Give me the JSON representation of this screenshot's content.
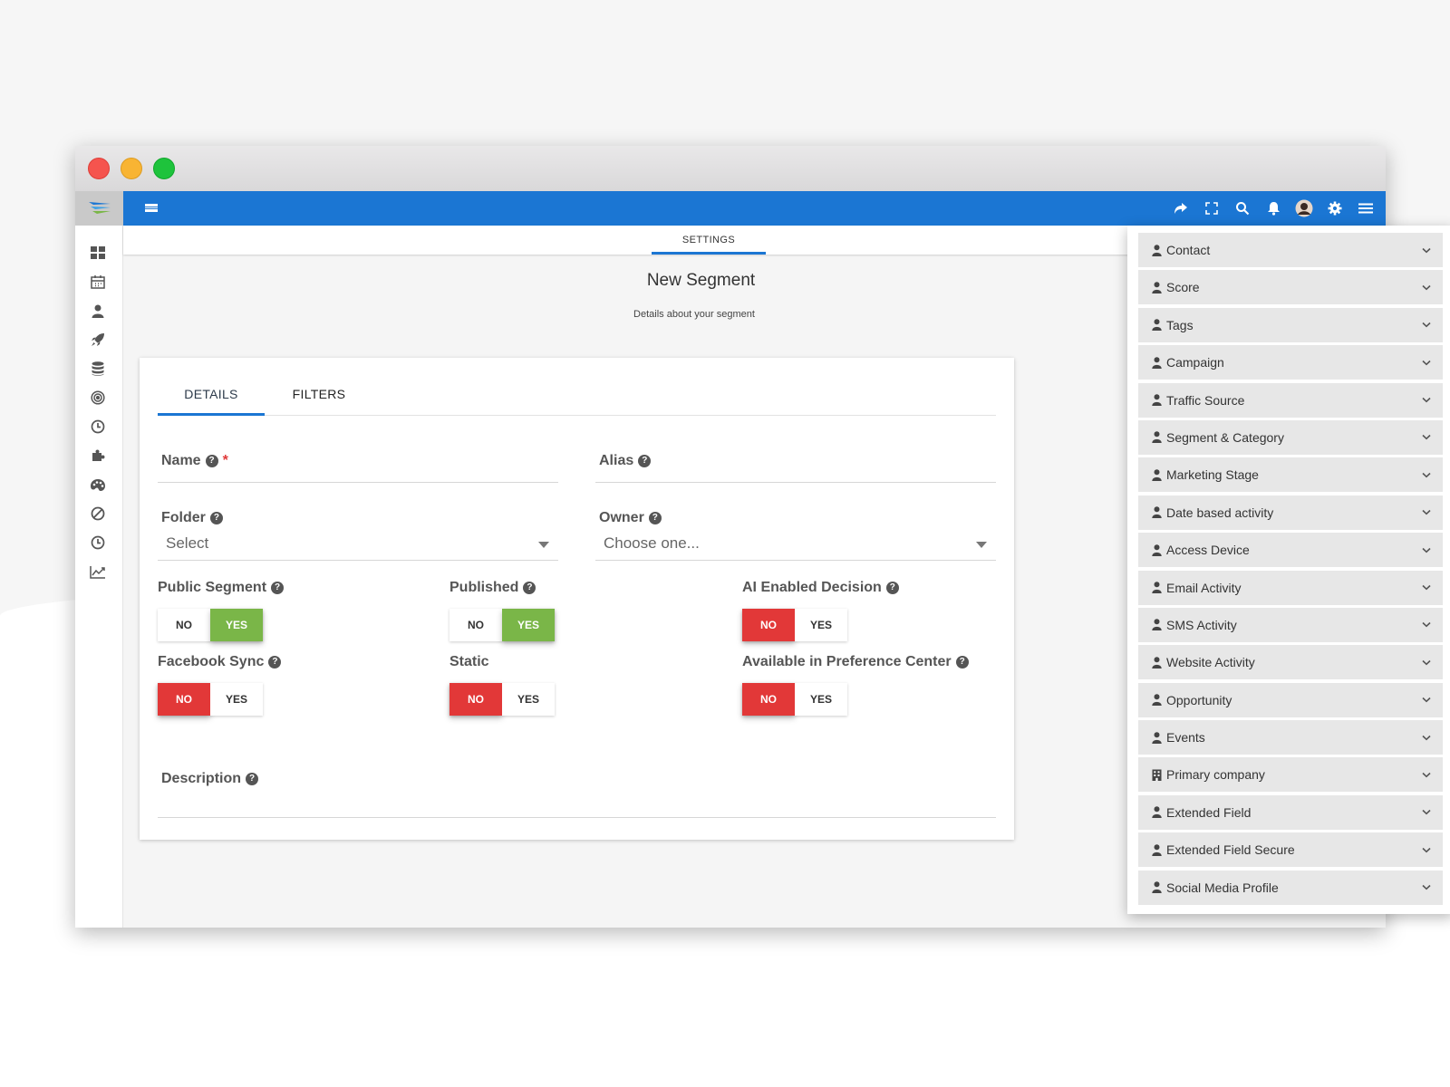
{
  "topbar": {
    "icons": [
      "share-icon",
      "fullscreen-icon",
      "search-icon",
      "bell-icon",
      "avatar",
      "gear-icon",
      "hamburger-icon"
    ]
  },
  "sidebar": {
    "icons": [
      "dashboard-icon",
      "calendar-icon",
      "user-icon",
      "rocket-icon",
      "database-icon",
      "target-icon",
      "clock-icon",
      "puzzle-icon",
      "palette-icon",
      "ban-icon",
      "history-icon",
      "chart-icon"
    ]
  },
  "header": {
    "settings_tab": "SETTINGS",
    "title": "New Segment",
    "subtitle": "Details about your segment"
  },
  "tabs": {
    "details": "DETAILS",
    "filters": "FILTERS"
  },
  "form": {
    "name_label": "Name",
    "required_mark": "*",
    "alias_label": "Alias",
    "folder_label": "Folder",
    "folder_value": "Select",
    "owner_label": "Owner",
    "owner_value": "Choose one...",
    "public_segment_label": "Public Segment",
    "published_label": "Published",
    "ai_decision_label": "AI Enabled Decision",
    "facebook_sync_label": "Facebook Sync",
    "static_label": "Static",
    "preference_center_label": "Available in Preference Center",
    "description_label": "Description",
    "help_glyph": "?",
    "no": "NO",
    "yes": "YES",
    "public_segment_value": "YES",
    "published_value": "YES",
    "ai_decision_value": "NO",
    "facebook_sync_value": "NO",
    "static_value": "NO",
    "preference_center_value": "NO"
  },
  "filter_panel": {
    "items": [
      {
        "label": "Contact",
        "icon": "user-icon"
      },
      {
        "label": "Score",
        "icon": "user-icon"
      },
      {
        "label": "Tags",
        "icon": "user-icon"
      },
      {
        "label": "Campaign",
        "icon": "user-icon"
      },
      {
        "label": "Traffic Source",
        "icon": "user-icon"
      },
      {
        "label": "Segment & Category",
        "icon": "user-icon"
      },
      {
        "label": "Marketing Stage",
        "icon": "user-icon"
      },
      {
        "label": "Date based activity",
        "icon": "user-icon"
      },
      {
        "label": "Access Device",
        "icon": "user-icon"
      },
      {
        "label": "Email Activity",
        "icon": "user-icon"
      },
      {
        "label": "SMS Activity",
        "icon": "user-icon"
      },
      {
        "label": "Website Activity",
        "icon": "user-icon"
      },
      {
        "label": "Opportunity",
        "icon": "user-icon"
      },
      {
        "label": "Events",
        "icon": "user-icon"
      },
      {
        "label": "Primary company",
        "icon": "building-icon"
      },
      {
        "label": "Extended Field",
        "icon": "user-icon"
      },
      {
        "label": "Extended Field Secure",
        "icon": "user-icon"
      },
      {
        "label": "Social Media Profile",
        "icon": "user-icon"
      }
    ]
  },
  "colors": {
    "primary": "#1b76d3",
    "yes_active": "#7ab648",
    "no_active": "#e23838"
  }
}
